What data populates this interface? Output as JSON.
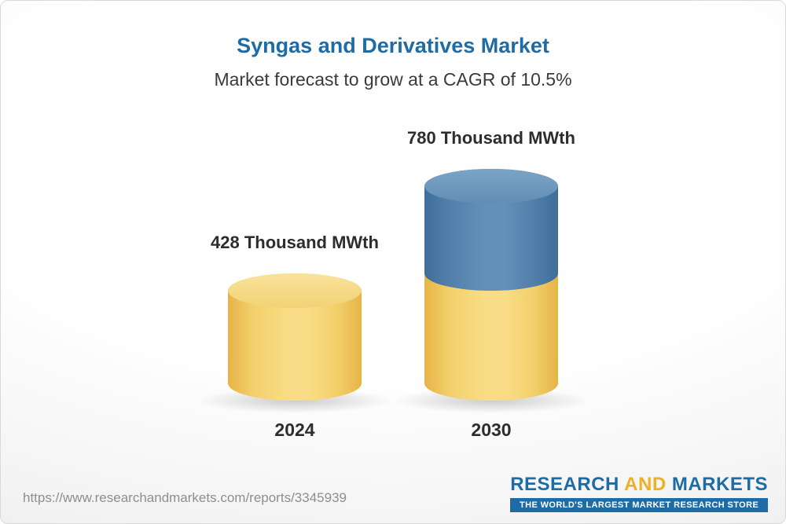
{
  "header": {
    "title": "Syngas and Derivatives Market",
    "subtitle": "Market forecast to grow at a CAGR of 10.5%"
  },
  "chart_data": {
    "type": "bar",
    "subtype": "3d-cylinder",
    "title": "Syngas and Derivatives Market",
    "subtitle": "Market forecast to grow at a CAGR of 10.5%",
    "cagr_percent": 10.5,
    "unit": "Thousand MWth",
    "categories": [
      "2024",
      "2030"
    ],
    "values": [
      428,
      780
    ],
    "value_labels": [
      "428 Thousand MWth",
      "780 Thousand MWth"
    ],
    "segments_2030": {
      "base": 428,
      "growth": 352
    },
    "ylim": [
      0,
      780
    ],
    "legend": "none",
    "grid": "off",
    "colors": {
      "bar_base": "#f2cb62",
      "bar_growth": "#4d80aa",
      "title": "#1d6ca6"
    }
  },
  "footer": {
    "url": "https://www.researchandmarkets.com/reports/3345939",
    "logo": {
      "word1": "RESEARCH",
      "word2": "AND",
      "word3": "MARKETS",
      "tagline": "THE WORLD'S LARGEST MARKET RESEARCH STORE"
    }
  }
}
